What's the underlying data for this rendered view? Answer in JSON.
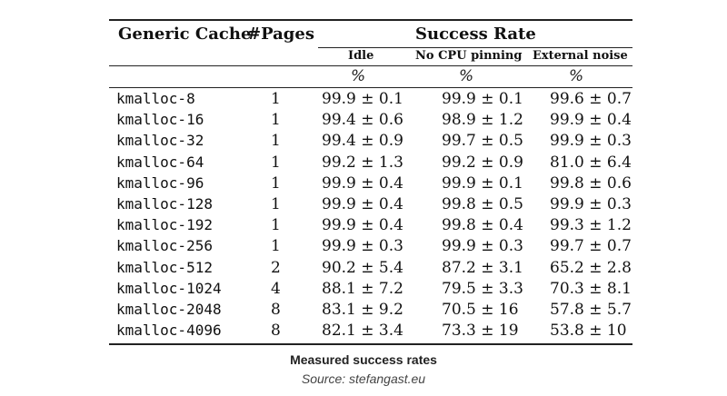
{
  "table": {
    "headers": {
      "cache": "Generic Cache",
      "pages": "#Pages",
      "success_rate": "Success Rate",
      "idle": "Idle",
      "no_cpu_pinning": "No CPU pinning",
      "external_noise": "External noise"
    },
    "units": {
      "idle": "%",
      "no_cpu_pinning": "%",
      "external_noise": "%"
    },
    "rows": [
      {
        "cache": "kmalloc-8",
        "pages": "1",
        "idle": "99.9 ± 0.1",
        "no_cpu": "99.9 ± 0.1",
        "noise": "99.6 ± 0.7"
      },
      {
        "cache": "kmalloc-16",
        "pages": "1",
        "idle": "99.4 ± 0.6",
        "no_cpu": "98.9 ± 1.2",
        "noise": "99.9 ± 0.4"
      },
      {
        "cache": "kmalloc-32",
        "pages": "1",
        "idle": "99.4 ± 0.9",
        "no_cpu": "99.7 ± 0.5",
        "noise": "99.9 ± 0.3"
      },
      {
        "cache": "kmalloc-64",
        "pages": "1",
        "idle": "99.2 ± 1.3",
        "no_cpu": "99.2 ± 0.9",
        "noise": "81.0 ± 6.4"
      },
      {
        "cache": "kmalloc-96",
        "pages": "1",
        "idle": "99.9 ± 0.4",
        "no_cpu": "99.9 ± 0.1",
        "noise": "99.8 ± 0.6"
      },
      {
        "cache": "kmalloc-128",
        "pages": "1",
        "idle": "99.9 ± 0.4",
        "no_cpu": "99.8 ± 0.5",
        "noise": "99.9 ± 0.3"
      },
      {
        "cache": "kmalloc-192",
        "pages": "1",
        "idle": "99.9 ± 0.4",
        "no_cpu": "99.8 ± 0.4",
        "noise": "99.3 ± 1.2"
      },
      {
        "cache": "kmalloc-256",
        "pages": "1",
        "idle": "99.9 ± 0.3",
        "no_cpu": "99.9 ± 0.3",
        "noise": "99.7 ± 0.7"
      },
      {
        "cache": "kmalloc-512",
        "pages": "2",
        "idle": "90.2 ± 5.4",
        "no_cpu": "87.2 ± 3.1",
        "noise": "65.2 ± 2.8"
      },
      {
        "cache": "kmalloc-1024",
        "pages": "4",
        "idle": "88.1 ± 7.2",
        "no_cpu": "79.5 ± 3.3",
        "noise": "70.3 ± 8.1"
      },
      {
        "cache": "kmalloc-2048",
        "pages": "8",
        "idle": "83.1 ± 9.2",
        "no_cpu": "70.5 ± 16",
        "noise": "57.8 ± 5.7"
      },
      {
        "cache": "kmalloc-4096",
        "pages": "8",
        "idle": "82.1 ± 3.4",
        "no_cpu": "73.3 ± 19",
        "noise": "53.8 ± 10"
      }
    ]
  },
  "caption": {
    "title": "Measured success rates",
    "source": "Source: stefangast.eu"
  }
}
